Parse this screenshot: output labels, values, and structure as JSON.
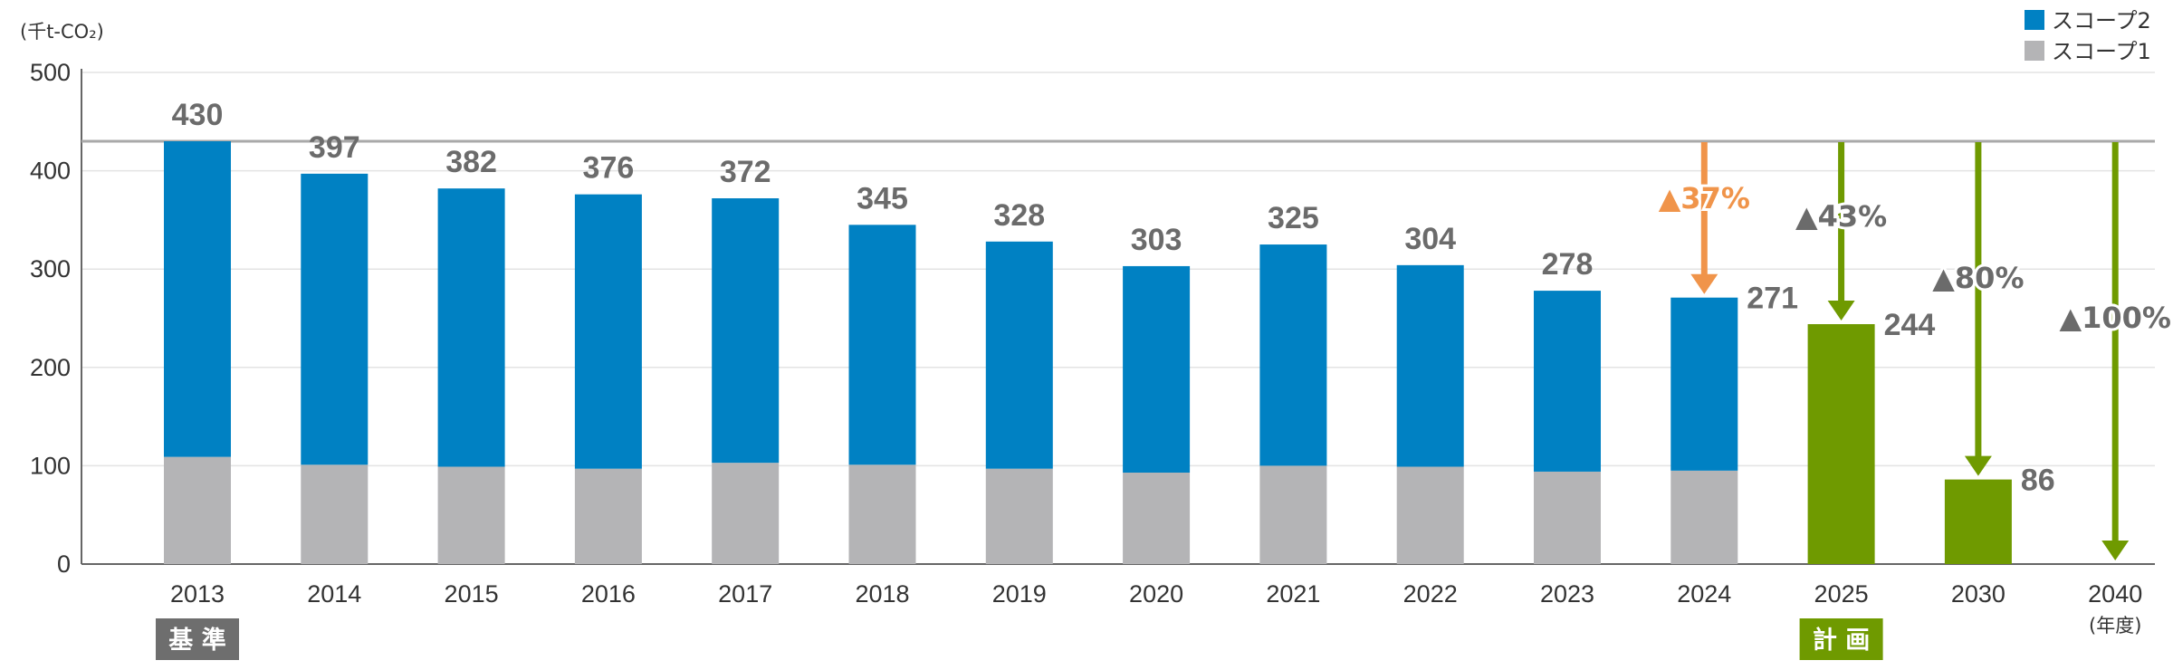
{
  "chart_data": {
    "type": "bar",
    "unit_label": "(千t-CO₂)",
    "ylim": [
      0,
      500
    ],
    "yticks": [
      0,
      100,
      200,
      300,
      400,
      500
    ],
    "categories": [
      "2013",
      "2014",
      "2015",
      "2016",
      "2017",
      "2018",
      "2019",
      "2020",
      "2021",
      "2022",
      "2023",
      "2024",
      "2025",
      "2030",
      "2040"
    ],
    "x_suffix": "(年度)",
    "totals": [
      430,
      397,
      382,
      376,
      372,
      345,
      328,
      303,
      325,
      304,
      278,
      271,
      244,
      86,
      null
    ],
    "series": [
      {
        "name": "スコープ1",
        "color": "#b4b4b6",
        "values": [
          109,
          101,
          99,
          97,
          103,
          101,
          97,
          93,
          100,
          99,
          94,
          95,
          null,
          null,
          null
        ]
      },
      {
        "name": "スコープ2",
        "color": "#0081c3",
        "values": [
          321,
          296,
          283,
          279,
          269,
          244,
          231,
          210,
          225,
          205,
          184,
          176,
          null,
          null,
          null
        ]
      },
      {
        "name": "計画",
        "color": "#6f9a00",
        "values": [
          null,
          null,
          null,
          null,
          null,
          null,
          null,
          null,
          null,
          null,
          null,
          null,
          244,
          86,
          0
        ]
      }
    ],
    "legend": [
      {
        "label": "スコープ2",
        "color": "#0081c3"
      },
      {
        "label": "スコープ1",
        "color": "#b4b4b6"
      }
    ],
    "baseline": {
      "value": 430,
      "color": "#a9a9a9"
    },
    "badges": [
      {
        "label": "基 準",
        "category": "2013",
        "color": "#6e6e6e"
      },
      {
        "label": "計 画",
        "category": "2025",
        "color": "#6f9a00"
      }
    ],
    "reductions": [
      {
        "category": "2024",
        "label": "▲37%",
        "to_value": 271,
        "color": "#f0944a",
        "label_color": "#f0944a"
      },
      {
        "category": "2025",
        "label": "▲43%",
        "to_value": 244,
        "color": "#6f9a00",
        "label_color": "#6b6b6b"
      },
      {
        "category": "2030",
        "label": "▲80%",
        "to_value": 86,
        "color": "#6f9a00",
        "label_color": "#6b6b6b"
      },
      {
        "category": "2040",
        "label": "▲100%",
        "to_value": 0,
        "color": "#6f9a00",
        "label_color": "#6b6b6b"
      }
    ]
  }
}
